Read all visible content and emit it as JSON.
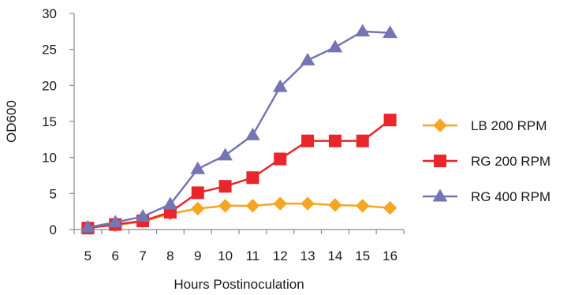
{
  "chart_data": {
    "type": "line",
    "title": "",
    "xlabel": "Hours Postinoculation",
    "ylabel": "OD600",
    "x": [
      5,
      6,
      7,
      8,
      9,
      10,
      11,
      12,
      13,
      14,
      15,
      16
    ],
    "xlim": [
      4.5,
      16.5
    ],
    "ylim": [
      0,
      30
    ],
    "yticks": [
      0,
      5,
      10,
      15,
      20,
      25,
      30
    ],
    "grid": false,
    "legend_position": "right",
    "series": [
      {
        "name": "LB 200 RPM",
        "color": "#F5A623",
        "marker": "diamond",
        "values": [
          0.3,
          0.6,
          1.1,
          2.2,
          2.9,
          3.3,
          3.3,
          3.6,
          3.6,
          3.4,
          3.3,
          3.0
        ]
      },
      {
        "name": "RG 200 RPM",
        "color": "#E8262C",
        "marker": "square",
        "values": [
          0.2,
          0.7,
          1.2,
          2.4,
          5.1,
          6.0,
          7.2,
          9.8,
          12.3,
          12.3,
          12.3,
          15.2
        ]
      },
      {
        "name": "RG 400 RPM",
        "color": "#7575B5",
        "marker": "triangle",
        "values": [
          0.3,
          1.0,
          1.8,
          3.5,
          8.4,
          10.3,
          13.1,
          19.8,
          23.5,
          25.3,
          27.5,
          27.3
        ]
      }
    ]
  }
}
